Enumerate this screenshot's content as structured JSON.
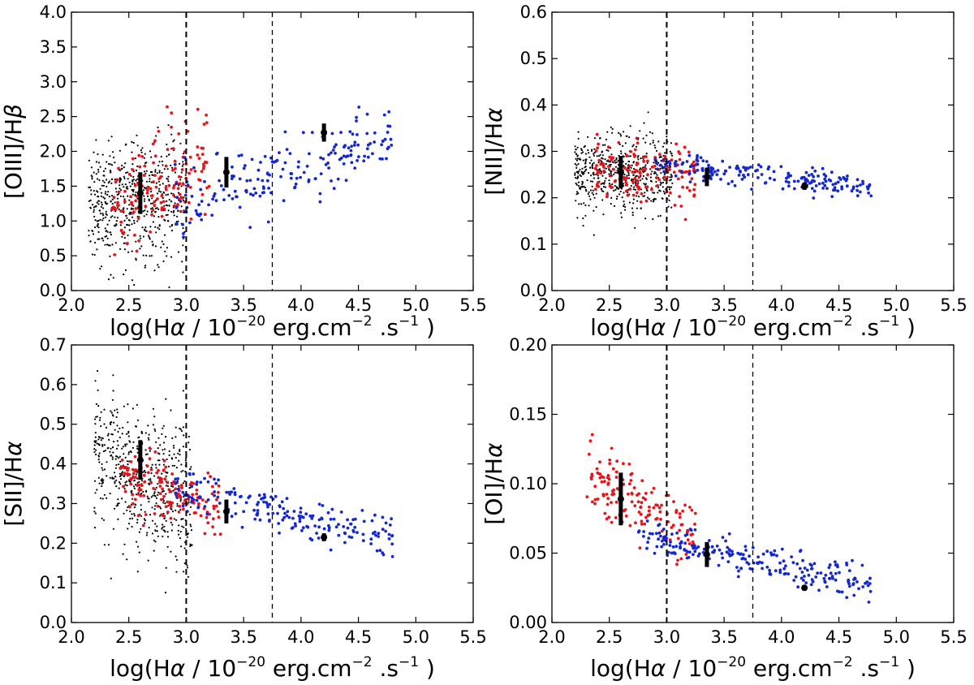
{
  "figure_title": "",
  "colors": {
    "faint": "#000000",
    "intermediate": "#e8141a",
    "bright": "#1428d2",
    "errorbar": "#000000"
  },
  "shared_x": {
    "label_prefix": "log(H",
    "label_greek": "α",
    "label_mid": " / 10",
    "label_exp1": "−20",
    "label_unit": "  erg.cm",
    "label_exp2": "−2",
    "label_dot_s": " .s",
    "label_exp3": "−1",
    "label_close": " )",
    "xlim": [
      2.0,
      5.5
    ],
    "ticks": [
      "2.0",
      "2.5",
      "3.0",
      "3.5",
      "4.0",
      "4.5",
      "5.0",
      "5.5"
    ],
    "dashed_lines_x": [
      3.0,
      3.75
    ]
  },
  "chart_data": [
    {
      "id": "oiii",
      "type": "scatter",
      "title": "",
      "ylabel_pre": "[OIII]/H",
      "ylabel_greek": "β",
      "ylim": [
        0.0,
        4.0
      ],
      "yticks": [
        "0.0",
        "0.5",
        "1.0",
        "1.5",
        "2.0",
        "2.5",
        "3.0",
        "3.5",
        "4.0"
      ],
      "series": [
        {
          "name": "faint",
          "x_range": [
            2.15,
            3.0
          ],
          "y_center": 1.25,
          "y_spread": 0.45,
          "count": 560,
          "slope": 0.2
        },
        {
          "name": "intermediate",
          "x_range": [
            2.35,
            3.2
          ],
          "y_center": 1.55,
          "y_spread": 0.35,
          "count": 150,
          "slope": 0.8
        },
        {
          "name": "bright",
          "x_range": [
            2.9,
            4.8
          ],
          "y_center": 1.7,
          "y_spread": 0.25,
          "count": 190,
          "slope": 0.55
        }
      ],
      "errorbars": [
        {
          "x": 2.6,
          "y": 1.4,
          "err": 0.3
        },
        {
          "x": 3.35,
          "y": 1.7,
          "err": 0.22
        },
        {
          "x": 4.2,
          "y": 2.27,
          "err": 0.13
        }
      ]
    },
    {
      "id": "nii",
      "type": "scatter",
      "title": "",
      "ylabel_pre": "[NII]/H",
      "ylabel_greek": "α",
      "ylim": [
        0.0,
        0.6
      ],
      "yticks": [
        "0.0",
        "0.1",
        "0.2",
        "0.3",
        "0.4",
        "0.5",
        "0.6"
      ],
      "series": [
        {
          "name": "faint",
          "x_range": [
            2.2,
            3.05
          ],
          "y_center": 0.255,
          "y_spread": 0.045,
          "count": 560,
          "slope": -0.01
        },
        {
          "name": "intermediate",
          "x_range": [
            2.35,
            3.25
          ],
          "y_center": 0.255,
          "y_spread": 0.03,
          "count": 150,
          "slope": -0.03
        },
        {
          "name": "bright",
          "x_range": [
            2.9,
            4.8
          ],
          "y_center": 0.25,
          "y_spread": 0.015,
          "count": 190,
          "slope": -0.03
        }
      ],
      "errorbars": [
        {
          "x": 2.6,
          "y": 0.255,
          "err": 0.035
        },
        {
          "x": 3.35,
          "y": 0.245,
          "err": 0.02
        },
        {
          "x": 4.2,
          "y": 0.225,
          "err": 0.008
        }
      ]
    },
    {
      "id": "sii",
      "type": "scatter",
      "title": "",
      "ylabel_pre": "[SII]/H",
      "ylabel_greek": "α",
      "ylim": [
        0.0,
        0.7
      ],
      "yticks": [
        "0.0",
        "0.1",
        "0.2",
        "0.3",
        "0.4",
        "0.5",
        "0.6",
        "0.7"
      ],
      "series": [
        {
          "name": "faint",
          "x_range": [
            2.2,
            3.05
          ],
          "y_center": 0.36,
          "y_spread": 0.09,
          "count": 560,
          "slope": -0.15
        },
        {
          "name": "intermediate",
          "x_range": [
            2.4,
            3.3
          ],
          "y_center": 0.33,
          "y_spread": 0.04,
          "count": 150,
          "slope": -0.1
        },
        {
          "name": "bright",
          "x_range": [
            2.9,
            4.8
          ],
          "y_center": 0.28,
          "y_spread": 0.025,
          "count": 190,
          "slope": -0.065
        }
      ],
      "errorbars": [
        {
          "x": 2.6,
          "y": 0.41,
          "err": 0.05
        },
        {
          "x": 3.35,
          "y": 0.28,
          "err": 0.03
        },
        {
          "x": 4.2,
          "y": 0.215,
          "err": 0.01
        }
      ]
    },
    {
      "id": "oi",
      "type": "scatter",
      "title": "",
      "ylabel_pre": "[OI]/H",
      "ylabel_greek": "α",
      "ylim": [
        0.0,
        0.2
      ],
      "yticks": [
        "0.00",
        "0.05",
        "0.10",
        "0.15",
        "0.20"
      ],
      "series": [
        {
          "name": "intermediate",
          "x_range": [
            2.3,
            3.25
          ],
          "y_center": 0.085,
          "y_spread": 0.013,
          "count": 150,
          "slope": -0.05
        },
        {
          "name": "bright",
          "x_range": [
            2.75,
            4.8
          ],
          "y_center": 0.045,
          "y_spread": 0.006,
          "count": 230,
          "slope": -0.018
        }
      ],
      "errorbars": [
        {
          "x": 2.6,
          "y": 0.089,
          "err": 0.019
        },
        {
          "x": 3.35,
          "y": 0.049,
          "err": 0.009
        },
        {
          "x": 4.2,
          "y": 0.025,
          "err": 0.002
        }
      ]
    }
  ]
}
